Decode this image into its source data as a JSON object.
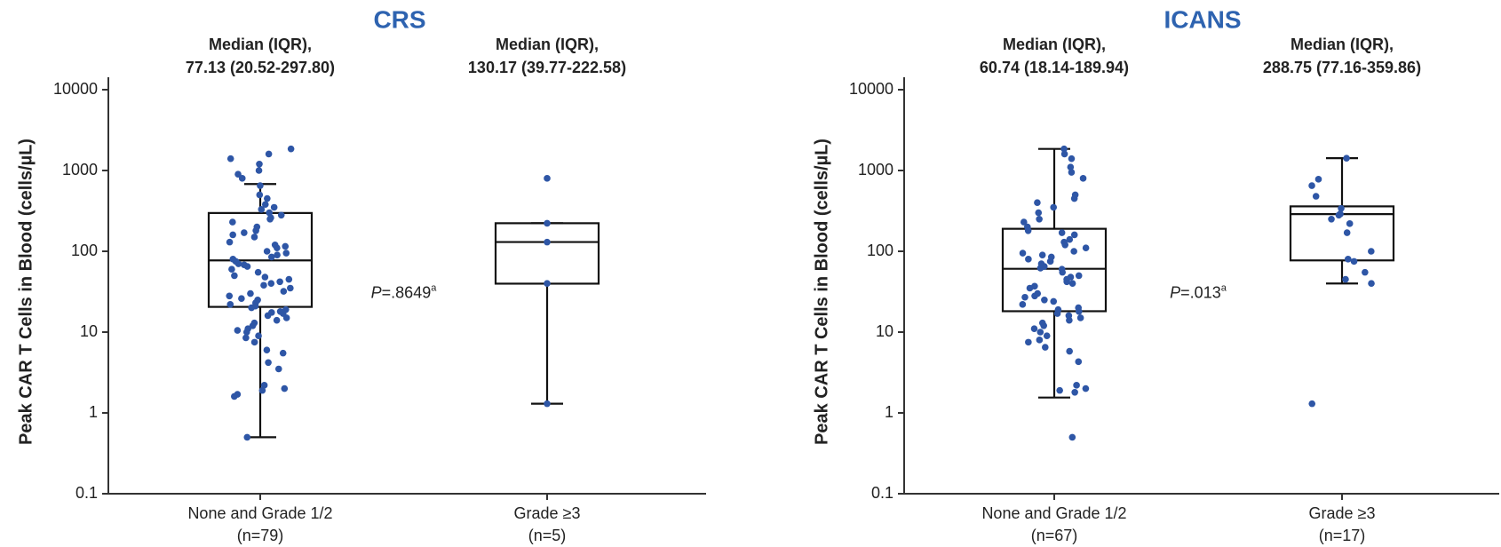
{
  "chart_data": [
    {
      "type": "box",
      "title": "CRS",
      "ylabel": "Peak CAR T Cells in Blood (cells/µL)",
      "log_scale": true,
      "color": "#2e56a6",
      "ylim": [
        0.1,
        10000
      ],
      "yticks": [
        0.1,
        1,
        10,
        100,
        1000,
        10000
      ],
      "p_value": {
        "italic": "P",
        "text": "=.8649",
        "footnote": "a"
      },
      "groups": [
        {
          "category": "None and Grade 1/2",
          "n_label": "(n=79)",
          "stats_heading": "Median (IQR),",
          "stats_label": "77.13 (20.52-297.80)",
          "median": 77.13,
          "q1": 20.52,
          "q3": 297.8,
          "whisker_low": 0.5,
          "whisker_high": 680,
          "values": [
            1850,
            1600,
            1400,
            1200,
            1000,
            900,
            800,
            650,
            500,
            450,
            380,
            350,
            330,
            300,
            280,
            260,
            250,
            230,
            200,
            180,
            170,
            160,
            150,
            130,
            120,
            115,
            110,
            100,
            95,
            90,
            85,
            80,
            75,
            70,
            68,
            65,
            60,
            55,
            50,
            48,
            45,
            42,
            40,
            38,
            35,
            32,
            30,
            28,
            26,
            25,
            23,
            22,
            21,
            20,
            19,
            18,
            17.5,
            17,
            16,
            15,
            14,
            13,
            12,
            11,
            10.5,
            10,
            9,
            8.5,
            7.5,
            6,
            5.5,
            4.2,
            3.5,
            2.2,
            2,
            1.9,
            1.7,
            1.6,
            0.5
          ]
        },
        {
          "category": "Grade ≥3",
          "n_label": "(n=5)",
          "stats_heading": "Median (IQR),",
          "stats_label": "130.17 (39.77-222.58)",
          "median": 130.17,
          "q1": 39.77,
          "q3": 222.58,
          "whisker_low": 1.3,
          "whisker_high": 222.58,
          "values": [
            800,
            222,
            130,
            40,
            1.3
          ]
        }
      ]
    },
    {
      "type": "box",
      "title": "ICANS",
      "ylabel": "Peak CAR T Cells in Blood (cells/µL)",
      "log_scale": true,
      "color": "#2e56a6",
      "ylim": [
        0.1,
        10000
      ],
      "yticks": [
        0.1,
        1,
        10,
        100,
        1000,
        10000
      ],
      "p_value": {
        "italic": "P",
        "text": "=.013",
        "footnote": "a"
      },
      "groups": [
        {
          "category": "None and Grade 1/2",
          "n_label": "(n=67)",
          "stats_heading": "Median (IQR),",
          "stats_label": "60.74 (18.14-189.94)",
          "median": 60.74,
          "q1": 18.14,
          "q3": 189.94,
          "whisker_low": 1.55,
          "whisker_high": 1850,
          "values": [
            1850,
            1600,
            1400,
            1100,
            950,
            800,
            500,
            450,
            400,
            350,
            300,
            250,
            230,
            200,
            180,
            170,
            160,
            140,
            130,
            120,
            110,
            100,
            95,
            90,
            85,
            80,
            75,
            70,
            65,
            62,
            60,
            55,
            50,
            48,
            45,
            42,
            40,
            37,
            35,
            30,
            28,
            27,
            25,
            24,
            22,
            20,
            19,
            18,
            17,
            16,
            15,
            14,
            13,
            12,
            11,
            10,
            9,
            8,
            7.5,
            6.5,
            5.8,
            4.3,
            2.2,
            2,
            1.9,
            1.8,
            0.5
          ]
        },
        {
          "category": "Grade ≥3",
          "n_label": "(n=17)",
          "stats_heading": "Median (IQR),",
          "stats_label": "288.75 (77.16-359.86)",
          "median": 288.75,
          "q1": 77.16,
          "q3": 359.86,
          "whisker_low": 40,
          "whisker_high": 1420,
          "values": [
            1420,
            780,
            650,
            480,
            340,
            290,
            280,
            250,
            220,
            170,
            100,
            80,
            75,
            55,
            45,
            40,
            1.3
          ]
        }
      ]
    }
  ]
}
